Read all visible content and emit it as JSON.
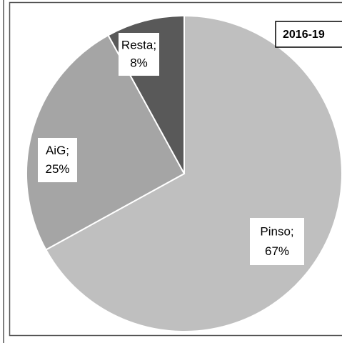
{
  "chart_data": {
    "type": "pie",
    "title": "2016-19",
    "categories": [
      "Pinso;",
      "AiG;",
      "Resta;"
    ],
    "values": [
      67,
      25,
      8
    ],
    "value_labels": [
      "67%",
      "25%",
      "8%"
    ],
    "colors": [
      "#bfbfbf",
      "#a5a5a5",
      "#595959"
    ]
  }
}
